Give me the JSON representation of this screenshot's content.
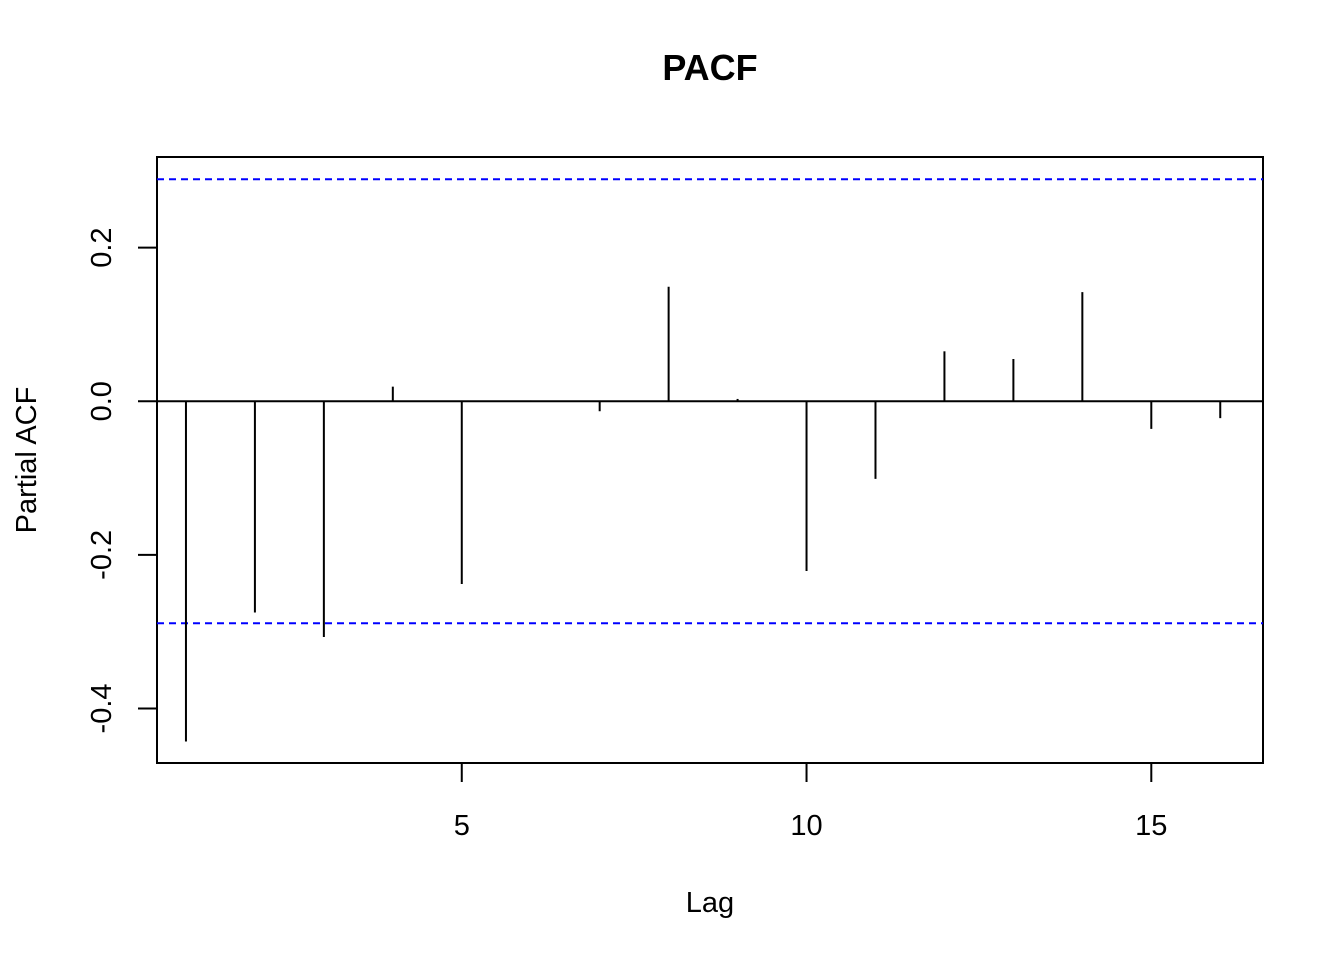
{
  "chart_data": {
    "type": "bar",
    "title": "PACF",
    "xlabel": "Lag",
    "ylabel": "Partial ACF",
    "x": [
      1,
      2,
      3,
      4,
      5,
      6,
      7,
      8,
      9,
      10,
      11,
      12,
      13,
      14,
      15,
      16
    ],
    "values": [
      -0.443,
      -0.275,
      -0.307,
      0.019,
      -0.238,
      0.001,
      -0.013,
      0.149,
      0.003,
      -0.221,
      -0.101,
      0.065,
      0.055,
      0.142,
      -0.036,
      -0.022
    ],
    "xlim": [
      0.58,
      16.62
    ],
    "ylim": [
      -0.471,
      0.318
    ],
    "x_ticks": [
      5,
      10,
      15
    ],
    "y_ticks": [
      -0.4,
      -0.2,
      0.0,
      0.2
    ],
    "x_tick_labels": [
      "5",
      "10",
      "15"
    ],
    "y_tick_labels": [
      "-0.4",
      "-0.2",
      "0.0",
      "0.2"
    ],
    "confidence_bound": 0.289,
    "zero_line": true,
    "colors": {
      "bars": "#000000",
      "bounds": "#0000ff",
      "frame": "#000000"
    },
    "grid": false,
    "legend": "none"
  }
}
